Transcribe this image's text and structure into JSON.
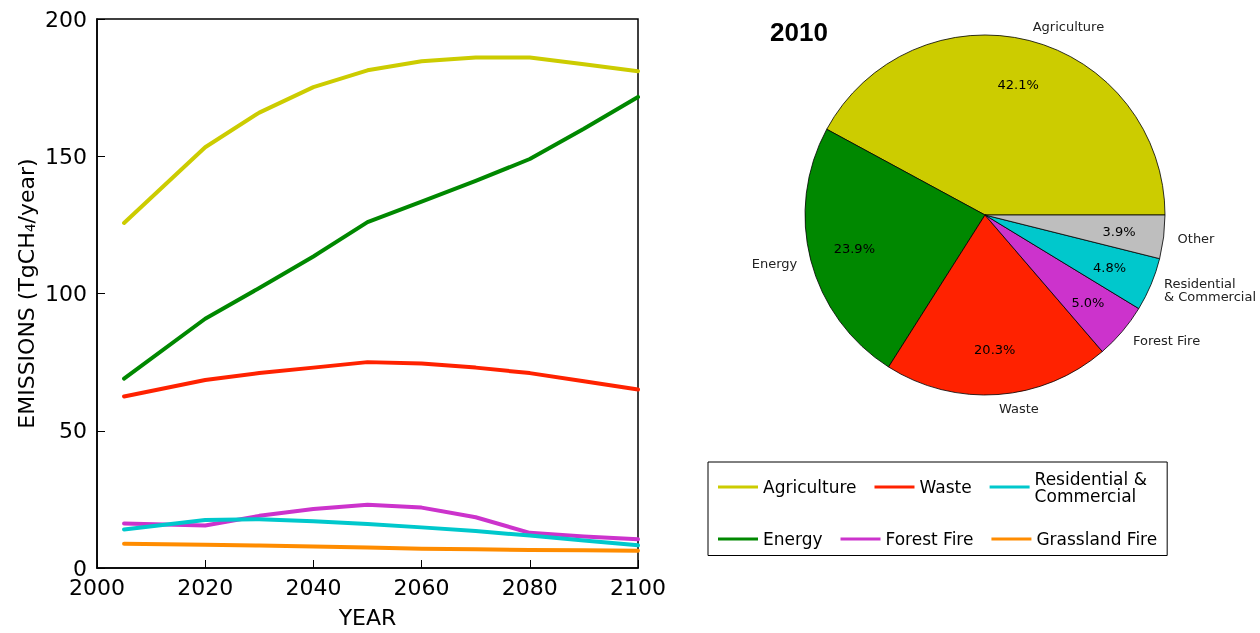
{
  "chart_data": [
    {
      "type": "line",
      "xlabel": "YEAR",
      "ylabel": "EMISSIONS (TgCH$_{4}$/year)",
      "x": [
        2005,
        2020,
        2030,
        2040,
        2050,
        2060,
        2070,
        2080,
        2090,
        2100
      ],
      "xlim": [
        2000,
        2100
      ],
      "xticks": [
        2000,
        2020,
        2040,
        2060,
        2080,
        2100
      ],
      "ylim": [
        0,
        200
      ],
      "yticks": [
        0,
        50,
        100,
        150,
        200
      ],
      "grid": false,
      "legend": "right",
      "marker": "none",
      "line_style": "solid",
      "series": [
        {
          "name": "Agriculture",
          "color": "#cccc00",
          "values": [
            125.7,
            153.3,
            165.9,
            175.2,
            181.3,
            184.6,
            186,
            186,
            183.5,
            181
          ]
        },
        {
          "name": "Energy",
          "color": "#008800",
          "values": [
            69,
            90.8,
            102,
            113.5,
            126,
            133.5,
            141,
            149,
            160,
            171.6
          ]
        },
        {
          "name": "Waste",
          "color": "#ff2200",
          "values": [
            62.5,
            68.5,
            71,
            73,
            75,
            74.5,
            73,
            71,
            68,
            65
          ]
        },
        {
          "name": "Forest Fire",
          "color": "#cc33cc",
          "values": [
            16.2,
            15.5,
            19,
            21.5,
            23,
            22,
            18.5,
            12.8,
            11.5,
            10.5
          ]
        },
        {
          "name": "Residential & Commercial",
          "color": "#00c8cc",
          "values": [
            14,
            17.5,
            17.8,
            17,
            16,
            14.8,
            13.5,
            11.8,
            10,
            8.3
          ]
        },
        {
          "name": "Grassland Fire",
          "color": "#ff8c00",
          "values": [
            8.8,
            8.5,
            8.2,
            7.8,
            7.5,
            7,
            6.8,
            6.6,
            6.5,
            6.3
          ]
        }
      ]
    },
    {
      "type": "pie",
      "title": "2010",
      "categories": [
        "Agriculture",
        "Energy",
        "Waste",
        "Forest Fire",
        "Residential & Commercial",
        "Other"
      ],
      "values": [
        42.1,
        23.9,
        20.3,
        5.0,
        4.8,
        3.9
      ],
      "value_labels": [
        "42.1%",
        "23.9%",
        "20.3%",
        "5.0%",
        "4.8%",
        "3.9%"
      ],
      "colors": [
        "#cccc00",
        "#008800",
        "#ff2200",
        "#cc33cc",
        "#00c8cc",
        "#bebebe"
      ]
    }
  ]
}
